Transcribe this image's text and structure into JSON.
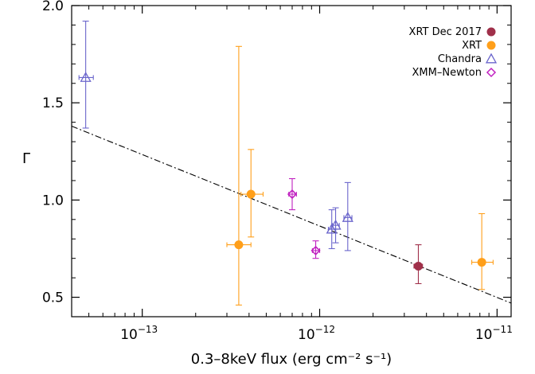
{
  "chart_data": {
    "type": "scatter",
    "x_scale": "log",
    "xlim": [
      4e-14,
      1.2e-11
    ],
    "ylim": [
      0.4,
      2.0
    ],
    "xlabel": "0.3–8keV flux (erg cm⁻² s⁻¹)",
    "ylabel": "Γ",
    "x_ticks": [
      {
        "value": 1e-13,
        "label_base": "10",
        "label_exp": "−13"
      },
      {
        "value": 1e-12,
        "label_base": "10",
        "label_exp": "−12"
      },
      {
        "value": 1e-11,
        "label_base": "10",
        "label_exp": "−11"
      }
    ],
    "y_ticks": [
      {
        "value": 0.5,
        "label": "0.5"
      },
      {
        "value": 1.0,
        "label": "1.0"
      },
      {
        "value": 1.5,
        "label": "1.5"
      },
      {
        "value": 2.0,
        "label": "2.0"
      }
    ],
    "legend_position": "top-right",
    "series": [
      {
        "name": "XRT Dec 2017",
        "marker": "filled-circle",
        "color": "#a0304a",
        "points": [
          {
            "x": 3.6e-12,
            "y": 0.66,
            "xlo": 3.4e-12,
            "xhi": 3.8e-12,
            "ylo": 0.57,
            "yhi": 0.77
          }
        ]
      },
      {
        "name": "XRT",
        "marker": "filled-circle",
        "color": "#ff9f1a",
        "points": [
          {
            "x": 3.5e-13,
            "y": 0.77,
            "xlo": 3e-13,
            "xhi": 4.1e-13,
            "ylo": 0.46,
            "yhi": 1.79
          },
          {
            "x": 4.1e-13,
            "y": 1.03,
            "xlo": 3.6e-13,
            "xhi": 4.8e-13,
            "ylo": 0.81,
            "yhi": 1.26
          },
          {
            "x": 8.2e-12,
            "y": 0.68,
            "xlo": 7.2e-12,
            "xhi": 9.5e-12,
            "ylo": 0.54,
            "yhi": 0.93
          }
        ]
      },
      {
        "name": "Chandra",
        "marker": "open-triangle",
        "color": "#6b66cc",
        "points": [
          {
            "x": 4.8e-14,
            "y": 1.63,
            "xlo": 4.4e-14,
            "xhi": 5.3e-14,
            "ylo": 1.37,
            "yhi": 1.92
          },
          {
            "x": 1.17e-12,
            "y": 0.85,
            "xlo": 1.12e-12,
            "xhi": 1.23e-12,
            "ylo": 0.75,
            "yhi": 0.95
          },
          {
            "x": 1.23e-12,
            "y": 0.87,
            "xlo": 1.18e-12,
            "xhi": 1.29e-12,
            "ylo": 0.78,
            "yhi": 0.96
          },
          {
            "x": 1.44e-12,
            "y": 0.91,
            "xlo": 1.37e-12,
            "xhi": 1.52e-12,
            "ylo": 0.74,
            "yhi": 1.09
          }
        ]
      },
      {
        "name": "XMM–Newton",
        "marker": "open-diamond",
        "color": "#c021c0",
        "points": [
          {
            "x": 7e-13,
            "y": 1.03,
            "xlo": 6.7e-13,
            "xhi": 7.4e-13,
            "ylo": 0.95,
            "yhi": 1.11
          },
          {
            "x": 9.5e-13,
            "y": 0.74,
            "xlo": 9.1e-13,
            "xhi": 1e-12,
            "ylo": 0.7,
            "yhi": 0.79
          }
        ]
      }
    ],
    "fit_line": {
      "style": "dash-dot",
      "color": "#000000",
      "points": [
        {
          "x": 4e-14,
          "y": 1.38
        },
        {
          "x": 1.2e-11,
          "y": 0.47
        }
      ]
    }
  }
}
